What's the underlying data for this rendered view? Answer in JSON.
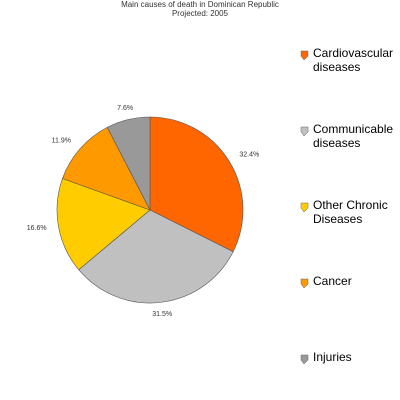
{
  "chart_data": {
    "type": "pie",
    "title": "Main causes of death in Dominican Republic",
    "subtitle": "Projected: 2005",
    "categories": [
      "Cardiovascular diseases",
      "Communicable diseases",
      "Other Chronic Diseases",
      "Cancer",
      "Injuries"
    ],
    "values": [
      32.4,
      31.5,
      16.6,
      11.9,
      7.6
    ],
    "value_labels": [
      "32.4%",
      "31.5%",
      "16.6%",
      "11.9%",
      "7.6%"
    ],
    "colors": [
      "#ff6600",
      "#c0c0c0",
      "#ffcc00",
      "#ff9900",
      "#999999"
    ],
    "legend": "right"
  }
}
